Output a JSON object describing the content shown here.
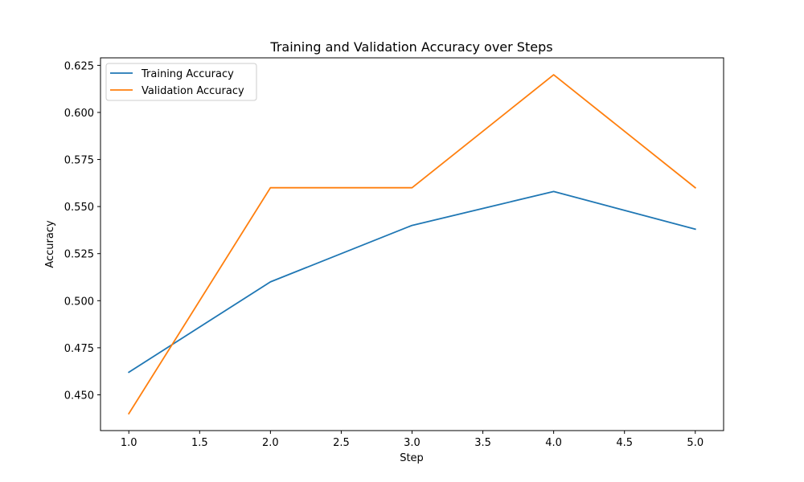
{
  "chart_data": {
    "type": "line",
    "title": "Training and Validation Accuracy over Steps",
    "xlabel": "Step",
    "ylabel": "Accuracy",
    "x": [
      1,
      2,
      3,
      4,
      5
    ],
    "xlim": [
      0.8,
      5.2
    ],
    "ylim": [
      0.431,
      0.629
    ],
    "xticks": [
      1.0,
      1.5,
      2.0,
      2.5,
      3.0,
      3.5,
      4.0,
      4.5,
      5.0
    ],
    "xtick_labels": [
      "1.0",
      "1.5",
      "2.0",
      "2.5",
      "3.0",
      "3.5",
      "4.0",
      "4.5",
      "5.0"
    ],
    "yticks": [
      0.45,
      0.475,
      0.5,
      0.525,
      0.55,
      0.575,
      0.6,
      0.625
    ],
    "ytick_labels": [
      "0.450",
      "0.475",
      "0.500",
      "0.525",
      "0.550",
      "0.575",
      "0.600",
      "0.625"
    ],
    "grid": false,
    "legend_position": "top-left",
    "series": [
      {
        "name": "Training Accuracy",
        "color": "#1f77b4",
        "values": [
          0.462,
          0.51,
          0.54,
          0.558,
          0.538
        ]
      },
      {
        "name": "Validation Accuracy",
        "color": "#ff7f0e",
        "values": [
          0.44,
          0.56,
          0.56,
          0.62,
          0.56
        ]
      }
    ]
  }
}
